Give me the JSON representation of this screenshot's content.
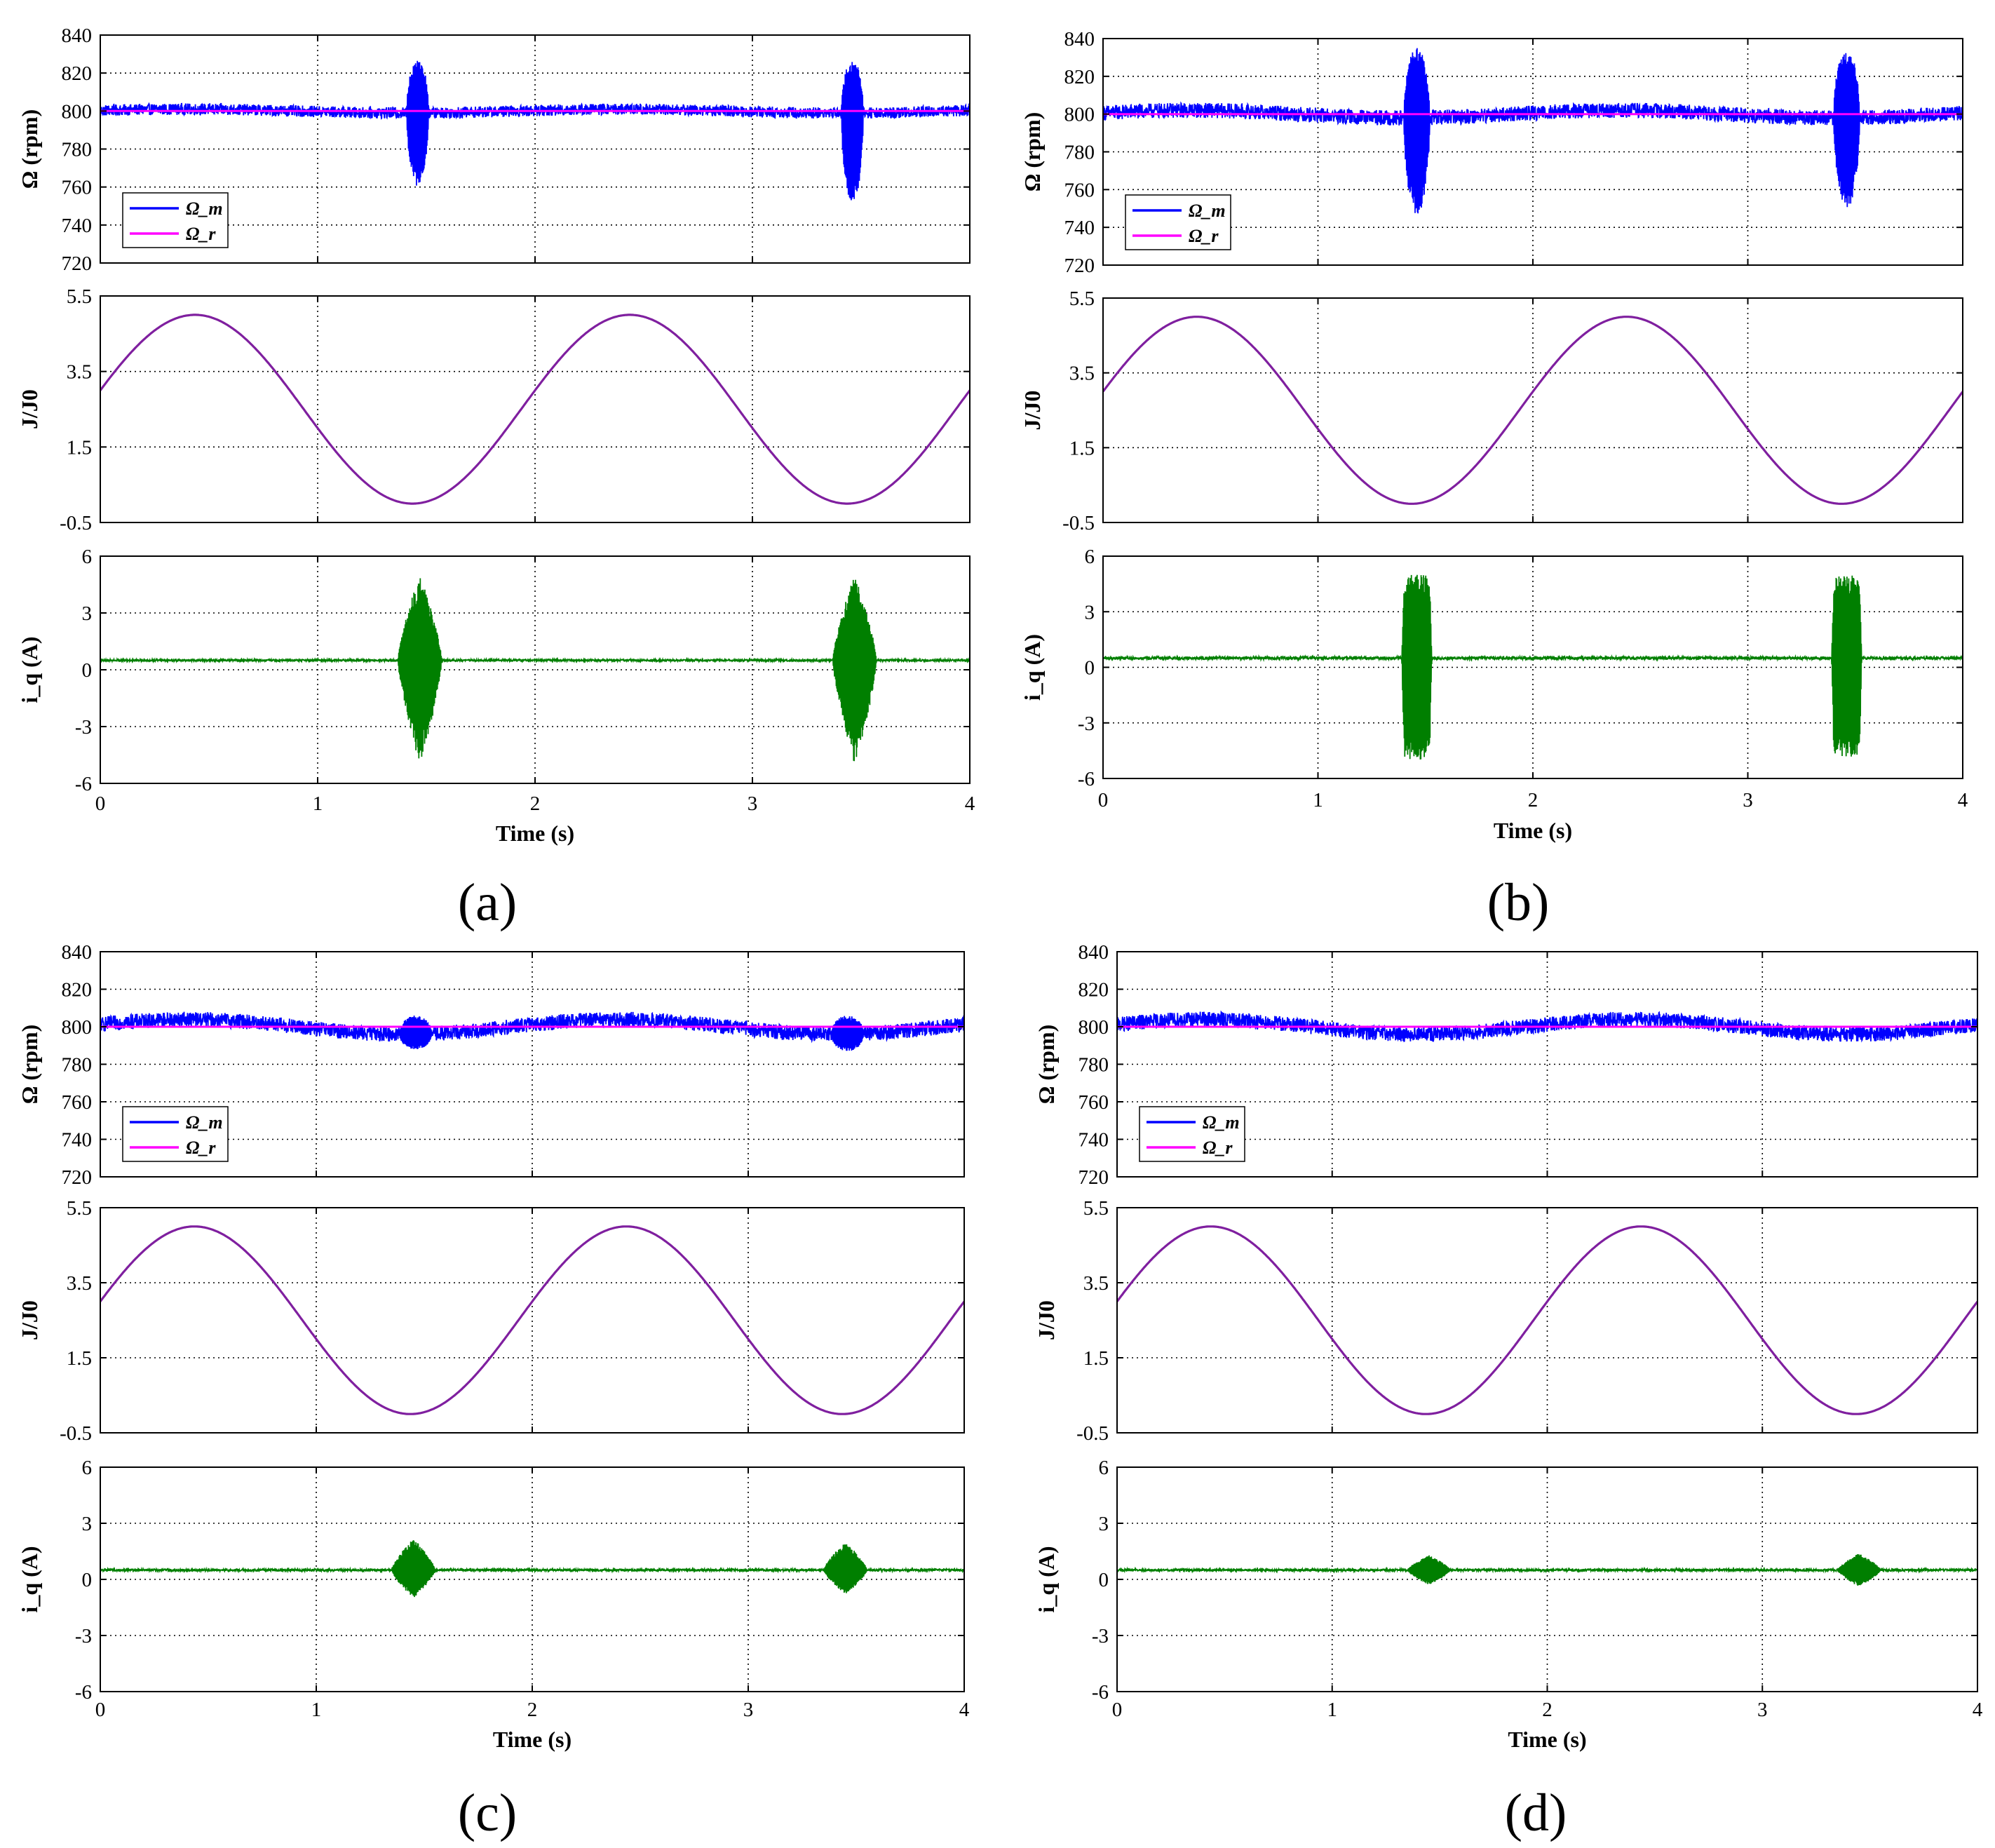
{
  "chart_data": [
    {
      "panel": "(a)",
      "type": "line",
      "xlabel": "Time (s)",
      "xlim": [
        0,
        4
      ],
      "xticks": [
        "0",
        "1",
        "2",
        "3",
        "4"
      ],
      "subplots": [
        {
          "ylabel": "Ω (rpm)",
          "ylim": [
            720,
            840
          ],
          "yticks": [
            "720",
            "740",
            "760",
            "780",
            "800",
            "820",
            "840"
          ],
          "legend": [
            "Ω_m",
            "Ω_r"
          ],
          "legend_position": "lower-left",
          "series": [
            {
              "name": "Ω_m",
              "color": "#0000ff",
              "kind": "speed",
              "base": 800,
              "noise": 3,
              "slow_amplitude": 1,
              "bursts": [
                {
                  "center": 1.46,
                  "width": 0.1,
                  "low": 760,
                  "high": 828
                },
                {
                  "center": 3.46,
                  "width": 0.1,
                  "low": 752,
                  "high": 827
                }
              ]
            },
            {
              "name": "Ω_r",
              "color": "#ff00ff",
              "kind": "constant",
              "value": 800
            }
          ]
        },
        {
          "ylabel": "J/J0",
          "ylim": [
            -0.5,
            5.5
          ],
          "yticks": [
            "-0.5",
            "1.5",
            "3.5",
            "5.5"
          ],
          "series": [
            {
              "name": "J/J0",
              "color": "#7f1f9f",
              "kind": "sine",
              "offset": 2.5,
              "amplitude": 2.5,
              "period": 2,
              "phase_start": 3.0
            }
          ]
        },
        {
          "ylabel": "i_q (A)",
          "ylim": [
            -6,
            6
          ],
          "yticks": [
            "-6",
            "-3",
            "0",
            "3",
            "6"
          ],
          "series": [
            {
              "name": "i_q",
              "color": "#007f00",
              "kind": "current",
              "base": 0.5,
              "noise": 0.05,
              "bursts": [
                {
                  "center": 1.47,
                  "width": 0.2,
                  "low": -5,
                  "high": 5,
                  "shape": "spindle"
                },
                {
                  "center": 3.47,
                  "width": 0.2,
                  "low": -5,
                  "high": 5,
                  "shape": "spindle"
                }
              ]
            }
          ]
        }
      ]
    },
    {
      "panel": "(b)",
      "type": "line",
      "xlabel": "Time (s)",
      "xlim": [
        0,
        4
      ],
      "xticks": [
        "0",
        "1",
        "2",
        "3",
        "4"
      ],
      "subplots": [
        {
          "ylabel": "Ω (rpm)",
          "ylim": [
            720,
            840
          ],
          "yticks": [
            "720",
            "740",
            "760",
            "780",
            "800",
            "820",
            "840"
          ],
          "legend": [
            "Ω_m",
            "Ω_r"
          ],
          "legend_position": "lower-left",
          "series": [
            {
              "name": "Ω_m",
              "color": "#0000ff",
              "kind": "speed",
              "base": 800,
              "noise": 4,
              "slow_amplitude": 2,
              "bursts": [
                {
                  "center": 1.46,
                  "width": 0.12,
                  "low": 747,
                  "high": 835
                },
                {
                  "center": 3.46,
                  "width": 0.12,
                  "low": 750,
                  "high": 835
                }
              ]
            },
            {
              "name": "Ω_r",
              "color": "#ff00ff",
              "kind": "constant",
              "value": 800
            }
          ]
        },
        {
          "ylabel": "J/J0",
          "ylim": [
            -0.5,
            5.5
          ],
          "yticks": [
            "-0.5",
            "1.5",
            "3.5",
            "5.5"
          ],
          "series": [
            {
              "name": "J/J0",
              "color": "#7f1f9f",
              "kind": "sine",
              "offset": 2.5,
              "amplitude": 2.5,
              "period": 2,
              "phase_start": 3.0
            }
          ]
        },
        {
          "ylabel": "i_q (A)",
          "ylim": [
            -6,
            6
          ],
          "yticks": [
            "-6",
            "-3",
            "0",
            "3",
            "6"
          ],
          "series": [
            {
              "name": "i_q",
              "color": "#007f00",
              "kind": "current",
              "base": 0.5,
              "noise": 0.08,
              "bursts": [
                {
                  "center": 1.46,
                  "width": 0.14,
                  "low": -5,
                  "high": 5,
                  "shape": "block"
                },
                {
                  "center": 3.46,
                  "width": 0.14,
                  "low": -5,
                  "high": 5,
                  "shape": "block"
                }
              ]
            }
          ]
        }
      ]
    },
    {
      "panel": "(c)",
      "type": "line",
      "xlabel": "Time (s)",
      "xlim": [
        0,
        4
      ],
      "xticks": [
        "0",
        "1",
        "2",
        "3",
        "4"
      ],
      "subplots": [
        {
          "ylabel": "Ω (rpm)",
          "ylim": [
            720,
            840
          ],
          "yticks": [
            "720",
            "740",
            "760",
            "780",
            "800",
            "820",
            "840"
          ],
          "legend": [
            "Ω_m",
            "Ω_r"
          ],
          "legend_position": "lower-left",
          "series": [
            {
              "name": "Ω_m",
              "color": "#0000ff",
              "kind": "speed",
              "base": 800,
              "noise": 4,
              "slow_amplitude": 4,
              "bursts": [
                {
                  "center": 1.46,
                  "width": 0.15,
                  "low": 788,
                  "high": 806
                },
                {
                  "center": 3.46,
                  "width": 0.15,
                  "low": 787,
                  "high": 806
                }
              ]
            },
            {
              "name": "Ω_r",
              "color": "#ff00ff",
              "kind": "constant",
              "value": 800
            }
          ]
        },
        {
          "ylabel": "J/J0",
          "ylim": [
            -0.5,
            5.5
          ],
          "yticks": [
            "-0.5",
            "1.5",
            "3.5",
            "5.5"
          ],
          "series": [
            {
              "name": "J/J0",
              "color": "#7f1f9f",
              "kind": "sine",
              "offset": 2.5,
              "amplitude": 2.5,
              "period": 2,
              "phase_start": 3.0
            }
          ]
        },
        {
          "ylabel": "i_q (A)",
          "ylim": [
            -6,
            6
          ],
          "yticks": [
            "-6",
            "-3",
            "0",
            "3",
            "6"
          ],
          "series": [
            {
              "name": "i_q",
              "color": "#007f00",
              "kind": "current",
              "base": 0.5,
              "noise": 0.06,
              "bursts": [
                {
                  "center": 1.45,
                  "width": 0.2,
                  "low": -1.0,
                  "high": 2.2,
                  "shape": "spindle"
                },
                {
                  "center": 3.45,
                  "width": 0.2,
                  "low": -0.8,
                  "high": 2.0,
                  "shape": "spindle"
                }
              ]
            }
          ]
        }
      ]
    },
    {
      "panel": "(d)",
      "type": "line",
      "xlabel": "Time (s)",
      "xlim": [
        0,
        4
      ],
      "xticks": [
        "0",
        "1",
        "2",
        "3",
        "4"
      ],
      "subplots": [
        {
          "ylabel": "Ω (rpm)",
          "ylim": [
            720,
            840
          ],
          "yticks": [
            "720",
            "740",
            "760",
            "780",
            "800",
            "820",
            "840"
          ],
          "legend": [
            "Ω_m",
            "Ω_r"
          ],
          "legend_position": "lower-left",
          "series": [
            {
              "name": "Ω_m",
              "color": "#0000ff",
              "kind": "speed",
              "base": 800,
              "noise": 4,
              "slow_amplitude": 4,
              "bursts": []
            },
            {
              "name": "Ω_r",
              "color": "#ff00ff",
              "kind": "constant",
              "value": 800
            }
          ]
        },
        {
          "ylabel": "J/J0",
          "ylim": [
            -0.5,
            5.5
          ],
          "yticks": [
            "-0.5",
            "1.5",
            "3.5",
            "5.5"
          ],
          "series": [
            {
              "name": "J/J0",
              "color": "#7f1f9f",
              "kind": "sine",
              "offset": 2.5,
              "amplitude": 2.5,
              "period": 2,
              "phase_start": 3.0
            }
          ]
        },
        {
          "ylabel": "i_q (A)",
          "ylim": [
            -6,
            6
          ],
          "yticks": [
            "-6",
            "-3",
            "0",
            "3",
            "6"
          ],
          "series": [
            {
              "name": "i_q",
              "color": "#007f00",
              "kind": "current",
              "base": 0.5,
              "noise": 0.06,
              "bursts": [
                {
                  "center": 1.45,
                  "width": 0.2,
                  "low": -0.3,
                  "high": 1.3,
                  "shape": "spindle"
                },
                {
                  "center": 3.45,
                  "width": 0.2,
                  "low": -0.4,
                  "high": 1.4,
                  "shape": "spindle"
                }
              ]
            }
          ]
        }
      ]
    }
  ]
}
